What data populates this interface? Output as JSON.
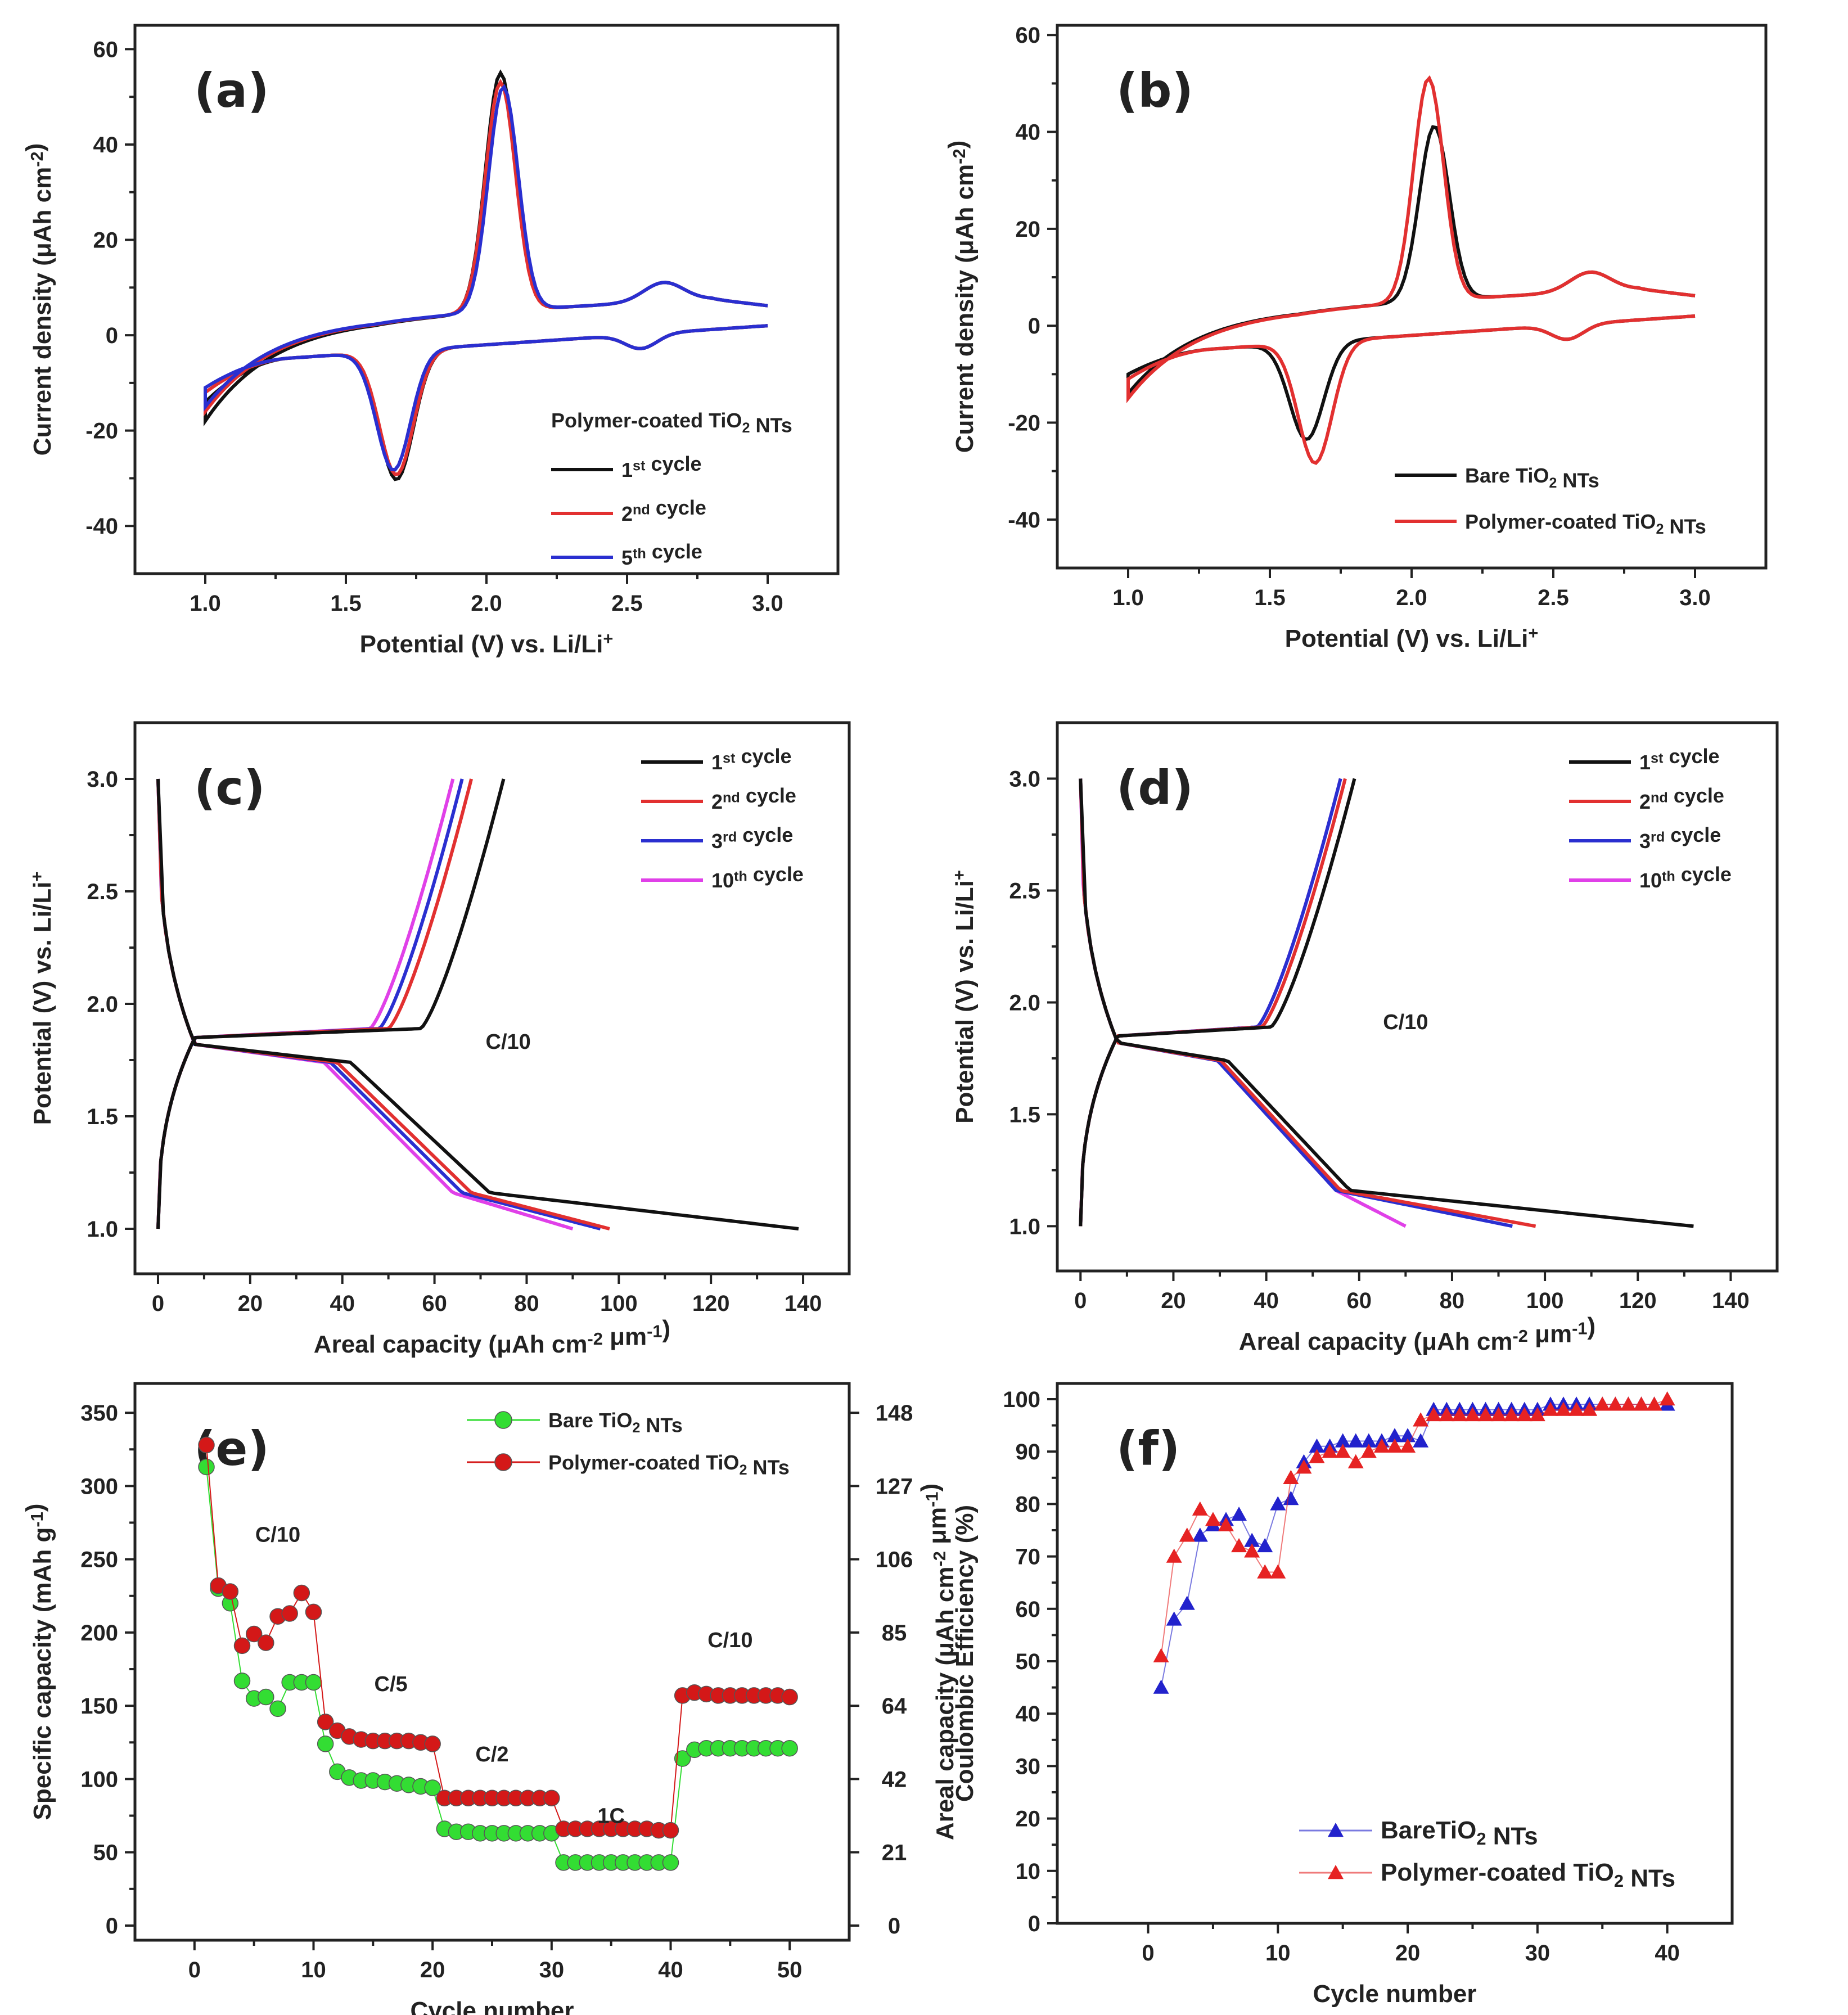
{
  "colors": {
    "black": "#111111",
    "red": "#e23030",
    "blue": "#2a2fd0",
    "magenta": "#e040e8",
    "green": "#33dd33",
    "dkred": "#d41818",
    "triBlue": "#2222cc",
    "triRed": "#e62222"
  },
  "chart_data": [
    {
      "id": "a",
      "type": "line",
      "panel_label": "(a)",
      "xlabel": "Potential (V) vs. Li/Li",
      "xlabel_sup": "+",
      "ylabel": "Current density (μAh cm",
      "ylabel_sup": "-2",
      "ylabel_end": ")",
      "xlim": [
        0.75,
        3.25
      ],
      "ylim": [
        -50,
        65
      ],
      "xticks": [
        "1.0",
        "1.5",
        "2.0",
        "2.5",
        "3.0"
      ],
      "yticks": [
        "-40",
        "-20",
        "0",
        "20",
        "40",
        "60"
      ],
      "legend_title": "Polymer-coated TiO",
      "legend_title_sub": "2",
      "legend_title_end": " NTs",
      "series": [
        {
          "name": "1",
          "sup": "st",
          "suffix": " cycle",
          "color": "black",
          "peak_ox": [
            2.05,
            56
          ],
          "peak_red": [
            1.68,
            -35
          ],
          "start_current": -18
        },
        {
          "name": "2",
          "sup": "nd",
          "suffix": " cycle",
          "color": "red",
          "peak_ox": [
            2.05,
            54
          ],
          "peak_red": [
            1.68,
            -34
          ],
          "start_current": -16
        },
        {
          "name": "5",
          "sup": "th",
          "suffix": " cycle",
          "color": "blue",
          "peak_ox": [
            2.06,
            53
          ],
          "peak_red": [
            1.67,
            -33
          ],
          "start_current": -15
        }
      ]
    },
    {
      "id": "b",
      "type": "line",
      "panel_label": "(b)",
      "xlabel": "Potential (V) vs. Li/Li",
      "xlabel_sup": "+",
      "ylabel": "Current density (μAh cm",
      "ylabel_sup": "-2",
      "ylabel_end": ")",
      "xlim": [
        0.75,
        3.25
      ],
      "ylim": [
        -50,
        62
      ],
      "xticks": [
        "1.0",
        "1.5",
        "2.0",
        "2.5",
        "3.0"
      ],
      "yticks": [
        "-40",
        "-20",
        "0",
        "20",
        "40",
        "60"
      ],
      "series": [
        {
          "name": "Bare TiO",
          "sub": "2",
          "suffix": " NTs",
          "color": "black",
          "peak_ox": [
            2.08,
            42
          ],
          "peak_red": [
            1.63,
            -28
          ],
          "start_current": -14
        },
        {
          "name": "Polymer-coated TiO",
          "sub": "2",
          "suffix": " NTs",
          "color": "red",
          "peak_ox": [
            2.06,
            52
          ],
          "peak_red": [
            1.66,
            -33
          ],
          "start_current": -15
        }
      ]
    },
    {
      "id": "c",
      "type": "line",
      "panel_label": "(c)",
      "annotation": "C/10",
      "xlabel": "Areal capacity (μAh cm",
      "xlabel_sup": "-2",
      "xlabel_mid": " μm",
      "xlabel_sup2": "-1",
      "xlabel_end": ")",
      "ylabel": "Potential (V) vs. Li/Li",
      "ylabel_sup": "+",
      "xlim": [
        -5,
        150
      ],
      "ylim": [
        0.8,
        3.25
      ],
      "xticks": [
        "0",
        "20",
        "40",
        "60",
        "80",
        "100",
        "120",
        "140"
      ],
      "yticks": [
        "1.0",
        "1.5",
        "2.0",
        "2.5",
        "3.0"
      ],
      "series": [
        {
          "name": "1",
          "sup": "st",
          "suffix": " cycle",
          "color": "black",
          "discharge_end": 139,
          "charge_end": 75,
          "plateau_end": 58
        },
        {
          "name": "2",
          "sup": "nd",
          "suffix": " cycle",
          "color": "red",
          "discharge_end": 98,
          "charge_end": 68,
          "plateau_end": 54
        },
        {
          "name": "3",
          "sup": "rd",
          "suffix": " cycle",
          "color": "blue",
          "discharge_end": 96,
          "charge_end": 66,
          "plateau_end": 52
        },
        {
          "name": "10",
          "sup": "th",
          "suffix": " cycle",
          "color": "magenta",
          "discharge_end": 90,
          "charge_end": 64,
          "plateau_end": 50
        }
      ]
    },
    {
      "id": "d",
      "type": "line",
      "panel_label": "(d)",
      "annotation": "C/10",
      "xlabel": "Areal capacity (μAh cm",
      "xlabel_sup": "-2",
      "xlabel_mid": " μm",
      "xlabel_sup2": "-1",
      "xlabel_end": ")",
      "ylabel": "Potential (V) vs. Li/Li",
      "ylabel_sup": "+",
      "xlim": [
        -5,
        150
      ],
      "ylim": [
        0.8,
        3.25
      ],
      "xticks": [
        "0",
        "20",
        "40",
        "60",
        "80",
        "100",
        "120",
        "140"
      ],
      "yticks": [
        "1.0",
        "1.5",
        "2.0",
        "2.5",
        "3.0"
      ],
      "series": [
        {
          "name": "1",
          "sup": "st",
          "suffix": " cycle",
          "color": "black",
          "discharge_end": 132,
          "charge_end": 59,
          "plateau_end": 44
        },
        {
          "name": "2",
          "sup": "nd",
          "suffix": " cycle",
          "color": "red",
          "discharge_end": 98,
          "charge_end": 57,
          "plateau_end": 42
        },
        {
          "name": "3",
          "sup": "rd",
          "suffix": " cycle",
          "color": "blue",
          "discharge_end": 93,
          "charge_end": 56,
          "plateau_end": 41
        },
        {
          "name": "10",
          "sup": "th",
          "suffix": " cycle",
          "color": "magenta",
          "discharge_end": 70,
          "charge_end": 56,
          "plateau_end": 41
        }
      ]
    },
    {
      "id": "e",
      "type": "scatter",
      "panel_label": "(e)",
      "xlabel": "Cycle number",
      "ylabel": "Specific capacity (mAh g",
      "ylabel_sup": "-1",
      "ylabel_end": ")",
      "y2label": "Areal capacity (μAh cm",
      "y2label_sup": "-2",
      "y2label_mid": " μm",
      "y2label_sup2": "-1",
      "y2label_end": ")",
      "xlim": [
        -5,
        55
      ],
      "ylim": [
        -10,
        370
      ],
      "xticks": [
        "0",
        "10",
        "20",
        "30",
        "40",
        "50"
      ],
      "yticks": [
        "0",
        "50",
        "100",
        "150",
        "200",
        "250",
        "300",
        "350"
      ],
      "y2ticks": [
        "0",
        "21",
        "42",
        "64",
        "85",
        "106",
        "127",
        "148"
      ],
      "rate_labels": [
        {
          "text": "C/10",
          "x": 7,
          "y": 262
        },
        {
          "text": "C/5",
          "x": 16.5,
          "y": 160
        },
        {
          "text": "C/2",
          "x": 25,
          "y": 112
        },
        {
          "text": "1C",
          "x": 35,
          "y": 70
        },
        {
          "text": "C/10",
          "x": 45,
          "y": 190
        }
      ],
      "x": [
        1,
        2,
        3,
        4,
        5,
        6,
        7,
        8,
        9,
        10,
        11,
        12,
        13,
        14,
        15,
        16,
        17,
        18,
        19,
        20,
        21,
        22,
        23,
        24,
        25,
        26,
        27,
        28,
        29,
        30,
        31,
        32,
        33,
        34,
        35,
        36,
        37,
        38,
        39,
        40,
        41,
        42,
        43,
        44,
        45,
        46,
        47,
        48,
        49,
        50
      ],
      "series": [
        {
          "name": "Bare TiO",
          "sub": "2",
          "suffix": " NTs",
          "color": "green",
          "values": [
            313,
            230,
            220,
            167,
            155,
            156,
            148,
            166,
            166,
            166,
            124,
            105,
            101,
            99,
            99,
            98,
            97,
            96,
            95,
            94,
            66,
            64,
            64,
            63,
            63,
            63,
            63,
            63,
            63,
            63,
            43,
            43,
            43,
            43,
            43,
            43,
            43,
            43,
            43,
            43,
            114,
            120,
            121,
            121,
            121,
            121,
            121,
            121,
            121,
            121
          ]
        },
        {
          "name": "Polymer-coated TiO",
          "sub": "2",
          "suffix": " NTs",
          "color": "dkred",
          "values": [
            328,
            232,
            228,
            191,
            199,
            193,
            211,
            213,
            227,
            214,
            139,
            133,
            129,
            127,
            126,
            126,
            126,
            126,
            125,
            124,
            87,
            87,
            87,
            87,
            87,
            87,
            87,
            87,
            87,
            87,
            66,
            66,
            66,
            66,
            66,
            66,
            66,
            66,
            65,
            65,
            157,
            159,
            158,
            157,
            157,
            157,
            157,
            157,
            157,
            156
          ]
        }
      ]
    },
    {
      "id": "f",
      "type": "scatter",
      "panel_label": "(f)",
      "xlabel": "Cycle number",
      "ylabel": "Coulombic Efficiency (%)",
      "xlim": [
        -7,
        45
      ],
      "ylim": [
        0,
        103
      ],
      "xticks": [
        "0",
        "10",
        "20",
        "30",
        "40"
      ],
      "yticks": [
        "0",
        "10",
        "20",
        "30",
        "40",
        "50",
        "60",
        "70",
        "80",
        "90",
        "100"
      ],
      "x": [
        1,
        2,
        3,
        4,
        5,
        6,
        7,
        8,
        9,
        10,
        11,
        12,
        13,
        14,
        15,
        16,
        17,
        18,
        19,
        20,
        21,
        22,
        23,
        24,
        25,
        26,
        27,
        28,
        29,
        30,
        31,
        32,
        33,
        34,
        35,
        36,
        37,
        38,
        39,
        40
      ],
      "series": [
        {
          "name": "Bare",
          "name_rest": "TiO",
          "sub": "2",
          "suffix": " NTs",
          "color": "triBlue",
          "values": [
            45,
            58,
            61,
            74,
            76,
            77,
            78,
            73,
            72,
            80,
            81,
            88,
            91,
            91,
            92,
            92,
            92,
            92,
            93,
            93,
            92,
            98,
            98,
            98,
            98,
            98,
            98,
            98,
            98,
            98,
            99,
            99,
            99,
            99,
            99,
            99,
            99,
            99,
            99,
            99
          ]
        },
        {
          "name": "Polymer-coated TiO",
          "sub": "2",
          "suffix": " NTs",
          "color": "triRed",
          "values": [
            51,
            70,
            74,
            79,
            77,
            76,
            72,
            71,
            67,
            67,
            85,
            87,
            89,
            90,
            90,
            88,
            90,
            91,
            91,
            91,
            96,
            97,
            97,
            97,
            97,
            97,
            97,
            97,
            97,
            97,
            98,
            98,
            98,
            98,
            99,
            99,
            99,
            99,
            99,
            100
          ]
        }
      ]
    }
  ]
}
